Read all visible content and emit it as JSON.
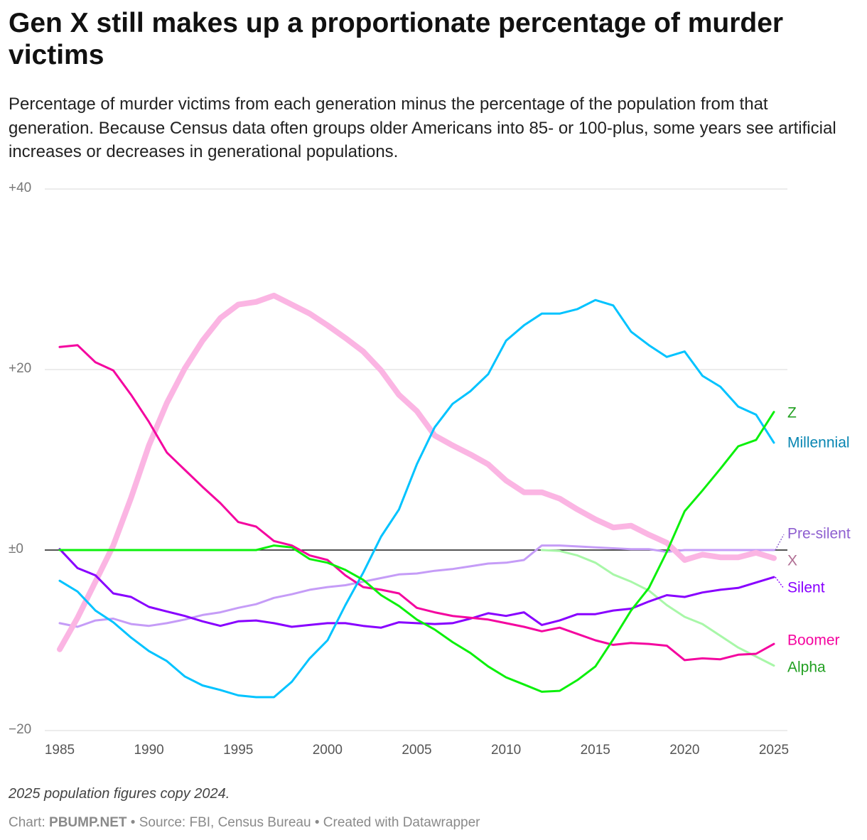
{
  "header": {
    "title": "Gen X still makes up a proportionate percentage of murder victims",
    "subtitle": "Percentage of murder victims from each generation minus the percentage of the population from that generation. Because Census data often groups older Americans into 85- or 100-plus, some years see artificial increases or decreases in generational populations."
  },
  "footer": {
    "notes": "2025 population figures copy 2024.",
    "chart_prefix": "Chart:",
    "chart_author": "PBUMP.NET",
    "separator_1": "•",
    "source": "Source: FBI, Census Bureau",
    "separator_2": "•",
    "created_with": "Created with Datawrapper"
  },
  "chart_data": {
    "type": "line",
    "title": "Gen X still makes up a proportionate percentage of murder victims",
    "subtitle": "Percentage of murder victims from each generation minus the percentage of the population from that generation. Because Census data often groups older Americans into 85- or 100-plus, some years see artificial increases or decreases in generational populations.",
    "xlabel": "",
    "ylabel": "",
    "xlim": [
      1985,
      2025
    ],
    "ylim": [
      -20,
      40
    ],
    "y_ticks": [
      40,
      20,
      0,
      -20
    ],
    "y_tick_labels": [
      "+40",
      "+20",
      "±0",
      "−20"
    ],
    "x_ticks": [
      1985,
      1990,
      1995,
      2000,
      2005,
      2010,
      2015,
      2020,
      2025
    ],
    "x_tick_labels": [
      "1985",
      "1990",
      "1995",
      "2000",
      "2005",
      "2010",
      "2015",
      "2020",
      "2025"
    ],
    "grid": true,
    "legend": "direct labels at right end of lines",
    "x": [
      1985,
      1986,
      1987,
      1988,
      1989,
      1990,
      1991,
      1992,
      1993,
      1994,
      1995,
      1996,
      1997,
      1998,
      1999,
      2000,
      2001,
      2002,
      2003,
      2004,
      2005,
      2006,
      2007,
      2008,
      2009,
      2010,
      2011,
      2012,
      2013,
      2014,
      2015,
      2016,
      2017,
      2018,
      2019,
      2020,
      2021,
      2022,
      2023,
      2024,
      2025
    ],
    "series": [
      {
        "name": "Pre-silent",
        "color": "#c59cf7",
        "label_color": "#8e5fd0",
        "width": 3,
        "values": [
          -8.1,
          -8.5,
          -7.8,
          -7.6,
          -8.2,
          -8.4,
          -8.1,
          -7.7,
          -7.2,
          -6.9,
          -6.4,
          -6.0,
          -5.3,
          -4.9,
          -4.4,
          -4.1,
          -3.9,
          -3.5,
          -3.1,
          -2.7,
          -2.6,
          -2.3,
          -2.1,
          -1.8,
          -1.5,
          -1.4,
          -1.1,
          0.5,
          0.5,
          0.4,
          0.3,
          0.2,
          0.1,
          0.1,
          -0.2,
          0.0,
          0.0,
          0.0,
          0.0,
          0.0,
          0.0
        ]
      },
      {
        "name": "Silent",
        "color": "#8800ff",
        "label_color": "#8800ff",
        "width": 3,
        "values": [
          0.1,
          -2.0,
          -2.8,
          -4.8,
          -5.2,
          -6.3,
          -6.8,
          -7.3,
          -7.9,
          -8.4,
          -7.9,
          -7.8,
          -8.1,
          -8.5,
          -8.3,
          -8.1,
          -8.1,
          -8.4,
          -8.6,
          -8.0,
          -8.1,
          -8.2,
          -8.1,
          -7.6,
          -7.0,
          -7.3,
          -6.9,
          -8.3,
          -7.8,
          -7.1,
          -7.1,
          -6.7,
          -6.5,
          -5.7,
          -5.0,
          -5.2,
          -4.7,
          -4.4,
          -4.2,
          -3.6,
          -3.0
        ]
      },
      {
        "name": "Boomer",
        "color": "#f4059f",
        "label_color": "#f4059f",
        "width": 3,
        "values": [
          22.5,
          22.7,
          20.8,
          19.9,
          17.2,
          14.2,
          10.8,
          8.9,
          7.0,
          5.2,
          3.1,
          2.6,
          1.0,
          0.5,
          -0.6,
          -1.1,
          -2.8,
          -4.1,
          -4.4,
          -4.8,
          -6.4,
          -6.9,
          -7.3,
          -7.5,
          -7.7,
          -8.1,
          -8.5,
          -9.0,
          -8.6,
          -9.3,
          -10.0,
          -10.5,
          -10.3,
          -10.4,
          -10.6,
          -12.2,
          -12.0,
          -12.1,
          -11.6,
          -11.5,
          -10.4
        ]
      },
      {
        "name": "X",
        "color": "#fbb5e3",
        "label_color": "#b06e93",
        "width": 8,
        "values": [
          -11.0,
          -7.5,
          -3.5,
          0.5,
          5.8,
          11.6,
          16.3,
          20.1,
          23.2,
          25.7,
          27.2,
          27.5,
          28.2,
          27.2,
          26.2,
          24.9,
          23.5,
          22.0,
          19.9,
          17.2,
          15.4,
          12.7,
          11.6,
          10.6,
          9.5,
          7.7,
          6.4,
          6.4,
          5.7,
          4.5,
          3.4,
          2.5,
          2.7,
          1.7,
          0.8,
          -1.1,
          -0.5,
          -0.8,
          -0.8,
          -0.3,
          -0.9
        ]
      },
      {
        "name": "Millennial",
        "color": "#00c3ff",
        "label_color": "#0886b2",
        "width": 3,
        "values": [
          -3.4,
          -4.6,
          -6.7,
          -8.0,
          -9.7,
          -11.2,
          -12.3,
          -14.0,
          -15.0,
          -15.5,
          -16.1,
          -16.3,
          -16.3,
          -14.6,
          -12.0,
          -10.0,
          -6.1,
          -2.5,
          1.5,
          4.5,
          9.5,
          13.6,
          16.2,
          17.6,
          19.5,
          23.2,
          24.9,
          26.2,
          26.2,
          26.7,
          27.7,
          27.1,
          24.2,
          22.7,
          21.4,
          22.0,
          19.3,
          18.1,
          15.9,
          15.0,
          11.9
        ]
      },
      {
        "name": "Z",
        "color": "#0bf00b",
        "label_color": "#22a022",
        "width": 3,
        "values": [
          0.0,
          0.0,
          0.0,
          0.0,
          0.0,
          0.0,
          0.0,
          0.0,
          0.0,
          0.0,
          0.0,
          0.0,
          0.5,
          0.3,
          -1.0,
          -1.4,
          -2.2,
          -3.3,
          -5.0,
          -6.2,
          -7.7,
          -8.8,
          -10.2,
          -11.4,
          -12.9,
          -14.1,
          -14.9,
          -15.7,
          -15.6,
          -14.4,
          -12.9,
          -9.9,
          -6.7,
          -4.2,
          -0.2,
          4.3,
          6.6,
          9.0,
          11.5,
          12.2,
          15.3
        ]
      },
      {
        "name": "Alpha",
        "color": "#a8f7a8",
        "label_color": "#22a022",
        "width": 3,
        "values": [
          null,
          null,
          null,
          null,
          null,
          null,
          null,
          null,
          null,
          null,
          null,
          null,
          null,
          null,
          null,
          null,
          null,
          null,
          null,
          null,
          null,
          null,
          null,
          null,
          null,
          null,
          null,
          0.0,
          -0.1,
          -0.6,
          -1.4,
          -2.7,
          -3.5,
          -4.5,
          -6.1,
          -7.4,
          -8.2,
          -9.5,
          -10.8,
          -11.8,
          -12.8
        ]
      }
    ]
  }
}
